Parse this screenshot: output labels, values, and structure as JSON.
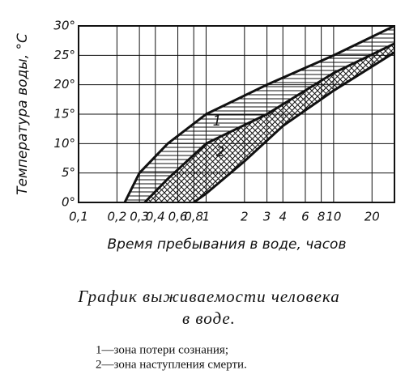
{
  "chart_data": {
    "type": "area",
    "y_label": "Температура воды, °C",
    "x_label": "Время пребывания в воде, часов",
    "caption": [
      "График выживаемости человека",
      "в воде."
    ],
    "legend": [
      "1—зона потери сознания;",
      "2—зона наступления смерти."
    ],
    "zone_labels": [
      "1",
      "2"
    ],
    "xscale": "log",
    "grid": true,
    "color": "#111111",
    "xlim": [
      0.1,
      30
    ],
    "ylim": [
      0,
      30
    ],
    "xticks": [
      {
        "value": 0.1,
        "label": "0,1"
      },
      {
        "value": 0.2,
        "label": "0,2"
      },
      {
        "value": 0.3,
        "label": "0,3"
      },
      {
        "value": 0.4,
        "label": "0,4"
      },
      {
        "value": 0.6,
        "label": "0,6"
      },
      {
        "value": 0.8,
        "label": "0,8"
      },
      1,
      2,
      3,
      4,
      6,
      8,
      10,
      20
    ],
    "yticks": [
      {
        "value": 0,
        "label": "0°"
      },
      {
        "value": 5,
        "label": "5°"
      },
      {
        "value": 10,
        "label": "10°"
      },
      {
        "value": 15,
        "label": "15°"
      },
      {
        "value": 20,
        "label": "20°"
      },
      {
        "value": 25,
        "label": "25°"
      },
      {
        "value": 30,
        "label": "30°"
      }
    ],
    "series": [
      {
        "x": [
          0.23,
          0.3,
          0.5,
          1,
          3,
          10,
          30
        ],
        "values": [
          0,
          5,
          10,
          15,
          20,
          25,
          30
        ]
      },
      {
        "x": [
          0.33,
          0.5,
          1,
          3,
          10,
          30
        ],
        "values": [
          0,
          4,
          10,
          15,
          22,
          27
        ]
      },
      {
        "x": [
          0.8,
          1,
          2,
          4,
          10,
          30
        ],
        "values": [
          0,
          1.5,
          7,
          13,
          19,
          25.5
        ]
      }
    ]
  }
}
